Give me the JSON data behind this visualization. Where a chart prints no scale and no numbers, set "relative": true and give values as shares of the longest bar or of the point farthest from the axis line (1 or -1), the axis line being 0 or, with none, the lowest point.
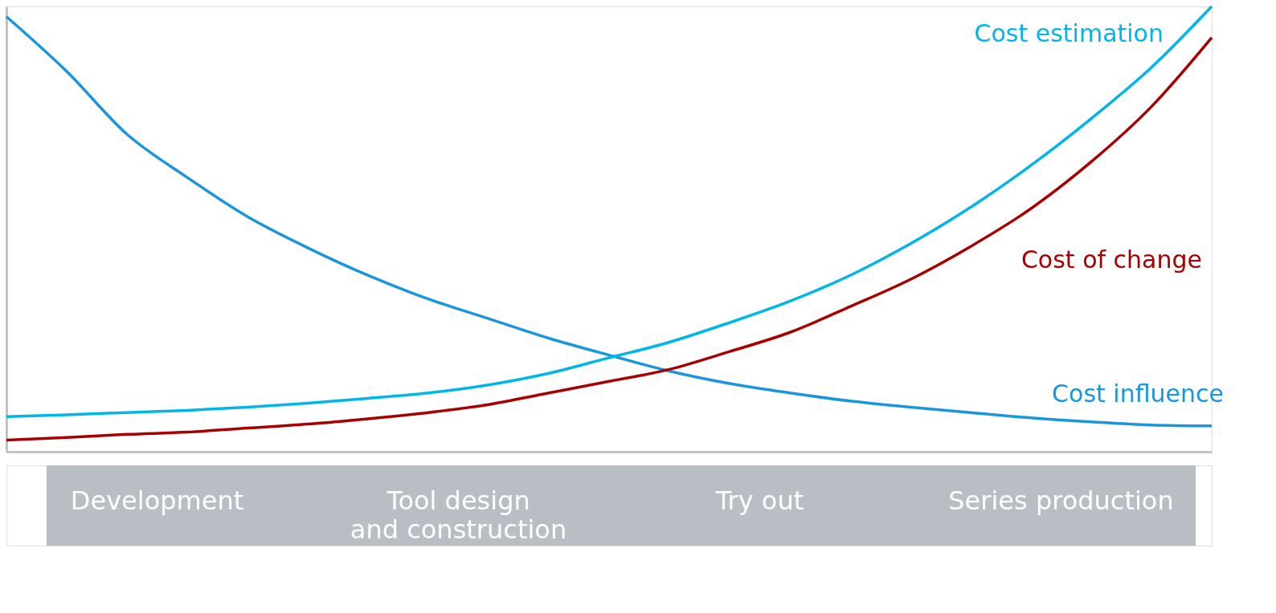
{
  "chart_data": {
    "type": "line",
    "relative": true,
    "grid": false,
    "marker": "none",
    "line_style": "solid",
    "categories": [
      null,
      null,
      null,
      null,
      null,
      null,
      null,
      null,
      null,
      null,
      null,
      null,
      null,
      null,
      null,
      null,
      null,
      null,
      null,
      null,
      null
    ],
    "series": [
      {
        "name": "Cost influence",
        "color": "#1a96dc",
        "values": [
          0.977,
          0.854,
          0.713,
          0.616,
          0.528,
          0.458,
          0.396,
          0.343,
          0.299,
          0.255,
          0.217,
          0.181,
          0.153,
          0.132,
          0.114,
          0.1,
          0.088,
          0.076,
          0.067,
          0.06,
          0.058
        ]
      },
      {
        "name": "Cost estimation",
        "color": "#00b6e8",
        "values": [
          0.079,
          0.083,
          0.088,
          0.093,
          0.1,
          0.109,
          0.12,
          0.132,
          0.15,
          0.176,
          0.211,
          0.246,
          0.29,
          0.338,
          0.396,
          0.467,
          0.549,
          0.643,
          0.748,
          0.863,
          1
        ]
      },
      {
        "name": "Cost of change",
        "color": "#a80000",
        "values": [
          0.026,
          0.032,
          0.039,
          0.044,
          0.053,
          0.062,
          0.074,
          0.088,
          0.106,
          0.132,
          0.158,
          0.185,
          0.225,
          0.268,
          0.326,
          0.387,
          0.461,
          0.546,
          0.651,
          0.775,
          0.93
        ]
      }
    ],
    "annotations": [
      "Development",
      "Tool design and construction",
      "Try out",
      "Series production"
    ]
  }
}
